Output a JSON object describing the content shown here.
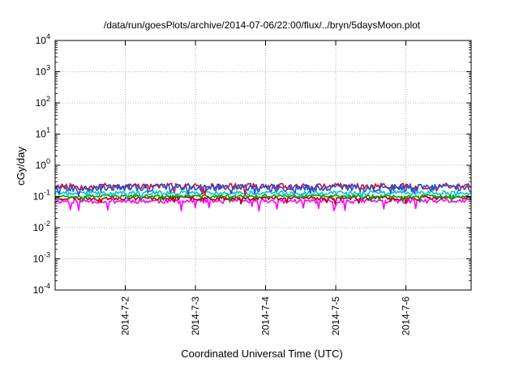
{
  "chart_data": {
    "type": "line",
    "title": "/data/run/goesPlots/archive/2014-07-06/22:00/flux/../bryn/5daysMoon.plot",
    "xlabel": "Coordinated Universal Time (UTC)",
    "ylabel": "cGy/day",
    "y_scale": "log",
    "ylim": [
      0.0001,
      10000
    ],
    "xlim": [
      0,
      5.93
    ],
    "x_unit": "days since 2014-07-01 00:00 UTC",
    "y_ticks": [
      {
        "value": 0.0001,
        "base": "10",
        "exp": "-4"
      },
      {
        "value": 0.001,
        "base": "10",
        "exp": "-3"
      },
      {
        "value": 0.01,
        "base": "10",
        "exp": "-2"
      },
      {
        "value": 0.1,
        "base": "10",
        "exp": "-1"
      },
      {
        "value": 1,
        "base": "10",
        "exp": "0"
      },
      {
        "value": 10,
        "base": "10",
        "exp": "1"
      },
      {
        "value": 100,
        "base": "10",
        "exp": "2"
      },
      {
        "value": 1000,
        "base": "10",
        "exp": "3"
      },
      {
        "value": 10000,
        "base": "10",
        "exp": "4"
      }
    ],
    "x_ticks": [
      {
        "value": 1,
        "label": "2014-7-2"
      },
      {
        "value": 2,
        "label": "2014-7-3"
      },
      {
        "value": 3,
        "label": "2014-7-4"
      },
      {
        "value": 4,
        "label": "2014-7-5"
      },
      {
        "value": 5,
        "label": "2014-7-6"
      }
    ],
    "grid": true,
    "series": [
      {
        "color": "#ff00ff",
        "base": 0.068,
        "amp": 0.012,
        "seed": 11,
        "dipProb": 0.045,
        "dipMin": 0.032
      },
      {
        "color": "#b00000",
        "base": 0.085,
        "amp": 0.012,
        "seed": 23,
        "dipProb": 0.03,
        "dipMin": 0.055
      },
      {
        "color": "#00a000",
        "base": 0.098,
        "amp": 0.012,
        "seed": 37,
        "dipProb": 0.03,
        "dipMin": 0.065
      },
      {
        "color": "#00c8c8",
        "base": 0.125,
        "amp": 0.02,
        "seed": 41,
        "dipProb": 0.03,
        "dipMin": 0.08
      },
      {
        "color": "#d01030",
        "base": 0.2,
        "amp": 0.05,
        "seed": 53,
        "dipProb": 0.03,
        "dipMin": 0.1
      },
      {
        "color": "#1e50d8",
        "base": 0.18,
        "amp": 0.05,
        "seed": 67,
        "dipProb": 0.03,
        "dipMin": 0.1
      }
    ]
  }
}
